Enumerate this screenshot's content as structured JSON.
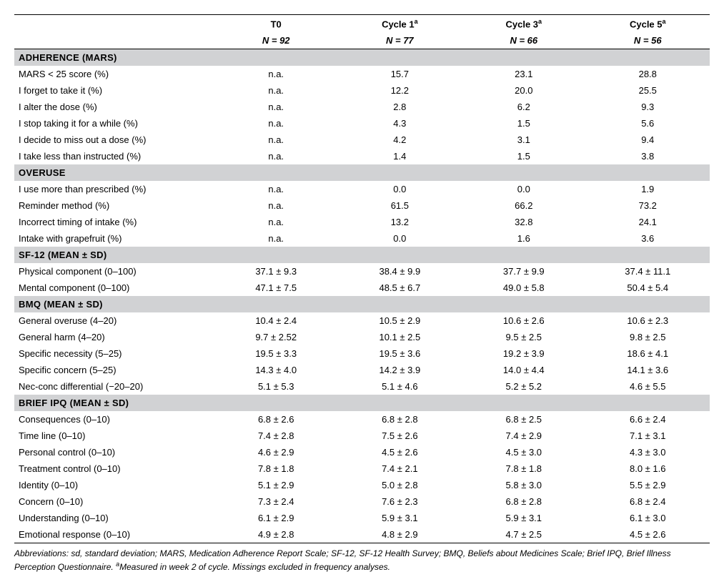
{
  "colors": {
    "section_bg": "#d1d2d4",
    "rule": "#000000",
    "text": "#000000",
    "bg": "#ffffff"
  },
  "header": {
    "cols": [
      {
        "title": "T0",
        "n": "N = 92",
        "sup": ""
      },
      {
        "title": "Cycle 1",
        "n": "N = 77",
        "sup": "a"
      },
      {
        "title": "Cycle 3",
        "n": "N = 66",
        "sup": "a"
      },
      {
        "title": "Cycle 5",
        "n": "N = 56",
        "sup": "a"
      }
    ]
  },
  "sections": [
    {
      "title": "ADHERENCE (MARS)",
      "rows": [
        {
          "label": "MARS < 25 score (%)",
          "v": [
            "n.a.",
            "15.7",
            "23.1",
            "28.8"
          ]
        },
        {
          "label": "I forget to take it (%)",
          "v": [
            "n.a.",
            "12.2",
            "20.0",
            "25.5"
          ]
        },
        {
          "label": "I alter the dose (%)",
          "v": [
            "n.a.",
            "2.8",
            "6.2",
            "9.3"
          ]
        },
        {
          "label": "I stop taking it for a while (%)",
          "v": [
            "n.a.",
            "4.3",
            "1.5",
            "5.6"
          ]
        },
        {
          "label": "I decide to miss out a dose (%)",
          "v": [
            "n.a.",
            "4.2",
            "3.1",
            "9.4"
          ]
        },
        {
          "label": "I take less than instructed (%)",
          "v": [
            "n.a.",
            "1.4",
            "1.5",
            "3.8"
          ]
        }
      ]
    },
    {
      "title": "OVERUSE",
      "rows": [
        {
          "label": "I use more than prescribed (%)",
          "v": [
            "n.a.",
            "0.0",
            "0.0",
            "1.9"
          ]
        },
        {
          "label": "Reminder method (%)",
          "v": [
            "n.a.",
            "61.5",
            "66.2",
            "73.2"
          ]
        },
        {
          "label": "Incorrect timing of intake (%)",
          "v": [
            "n.a.",
            "13.2",
            "32.8",
            "24.1"
          ]
        },
        {
          "label": "Intake with grapefruit (%)",
          "v": [
            "n.a.",
            "0.0",
            "1.6",
            "3.6"
          ]
        }
      ]
    },
    {
      "title": "SF-12 (MEAN ± SD)",
      "rows": [
        {
          "label": "Physical component (0–100)",
          "v": [
            "37.1 ± 9.3",
            "38.4 ± 9.9",
            "37.7 ± 9.9",
            "37.4 ± 11.1"
          ]
        },
        {
          "label": "Mental component (0–100)",
          "v": [
            "47.1 ± 7.5",
            "48.5 ± 6.7",
            "49.0 ± 5.8",
            "50.4 ± 5.4"
          ]
        }
      ]
    },
    {
      "title": "BMQ (MEAN ± SD)",
      "rows": [
        {
          "label": "General overuse (4–20)",
          "v": [
            "10.4 ± 2.4",
            "10.5 ± 2.9",
            "10.6 ± 2.6",
            "10.6 ± 2.3"
          ]
        },
        {
          "label": "General harm (4–20)",
          "v": [
            "9.7 ± 2.52",
            "10.1 ± 2.5",
            "9.5 ± 2.5",
            "9.8 ± 2.5"
          ]
        },
        {
          "label": "Specific necessity (5–25)",
          "v": [
            "19.5 ± 3.3",
            "19.5 ± 3.6",
            "19.2 ± 3.9",
            "18.6 ± 4.1"
          ]
        },
        {
          "label": "Specific concern (5–25)",
          "v": [
            "14.3 ± 4.0",
            "14.2 ± 3.9",
            "14.0 ± 4.4",
            "14.1 ± 3.6"
          ]
        },
        {
          "label": "Nec-conc differential (−20–20)",
          "v": [
            "5.1 ± 5.3",
            "5.1 ± 4.6",
            "5.2 ± 5.2",
            "4.6 ± 5.5"
          ]
        }
      ]
    },
    {
      "title": "BRIEF IPQ (MEAN ± SD)",
      "rows": [
        {
          "label": "Consequences (0–10)",
          "v": [
            "6.8 ± 2.6",
            "6.8 ± 2.8",
            "6.8 ± 2.5",
            "6.6 ± 2.4"
          ]
        },
        {
          "label": "Time line (0–10)",
          "v": [
            "7.4 ± 2.8",
            "7.5 ± 2.6",
            "7.4 ± 2.9",
            "7.1 ± 3.1"
          ]
        },
        {
          "label": "Personal control (0–10)",
          "v": [
            "4.6 ± 2.9",
            "4.5 ± 2.6",
            "4.5 ± 3.0",
            "4.3 ± 3.0"
          ]
        },
        {
          "label": "Treatment control (0–10)",
          "v": [
            "7.8 ± 1.8",
            "7.4 ± 2.1",
            "7.8 ± 1.8",
            "8.0 ± 1.6"
          ]
        },
        {
          "label": "Identity (0–10)",
          "v": [
            "5.1 ± 2.9",
            "5.0 ± 2.8",
            "5.8 ± 3.0",
            "5.5 ± 2.9"
          ]
        },
        {
          "label": "Concern (0–10)",
          "v": [
            "7.3 ± 2.4",
            "7.6 ± 2.3",
            "6.8 ± 2.8",
            "6.8 ± 2.4"
          ]
        },
        {
          "label": "Understanding (0–10)",
          "v": [
            "6.1 ± 2.9",
            "5.9 ± 3.1",
            "5.9 ± 3.1",
            "6.1 ± 3.0"
          ]
        },
        {
          "label": "Emotional response (0–10)",
          "v": [
            "4.9 ± 2.8",
            "4.8 ± 2.9",
            "4.7 ± 2.5",
            "4.5 ± 2.6"
          ]
        }
      ]
    }
  ],
  "footnote": {
    "text1": "Abbreviations: sd, standard deviation; MARS, Medication Adherence Report Scale; SF-12, SF-12 Health Survey; BMQ, Beliefs about Medicines Scale; Brief IPQ, Brief Illness Perception Questionnaire. ",
    "sup": "a",
    "text2": "Measured in week 2 of cycle. Missings excluded in frequency analyses."
  }
}
